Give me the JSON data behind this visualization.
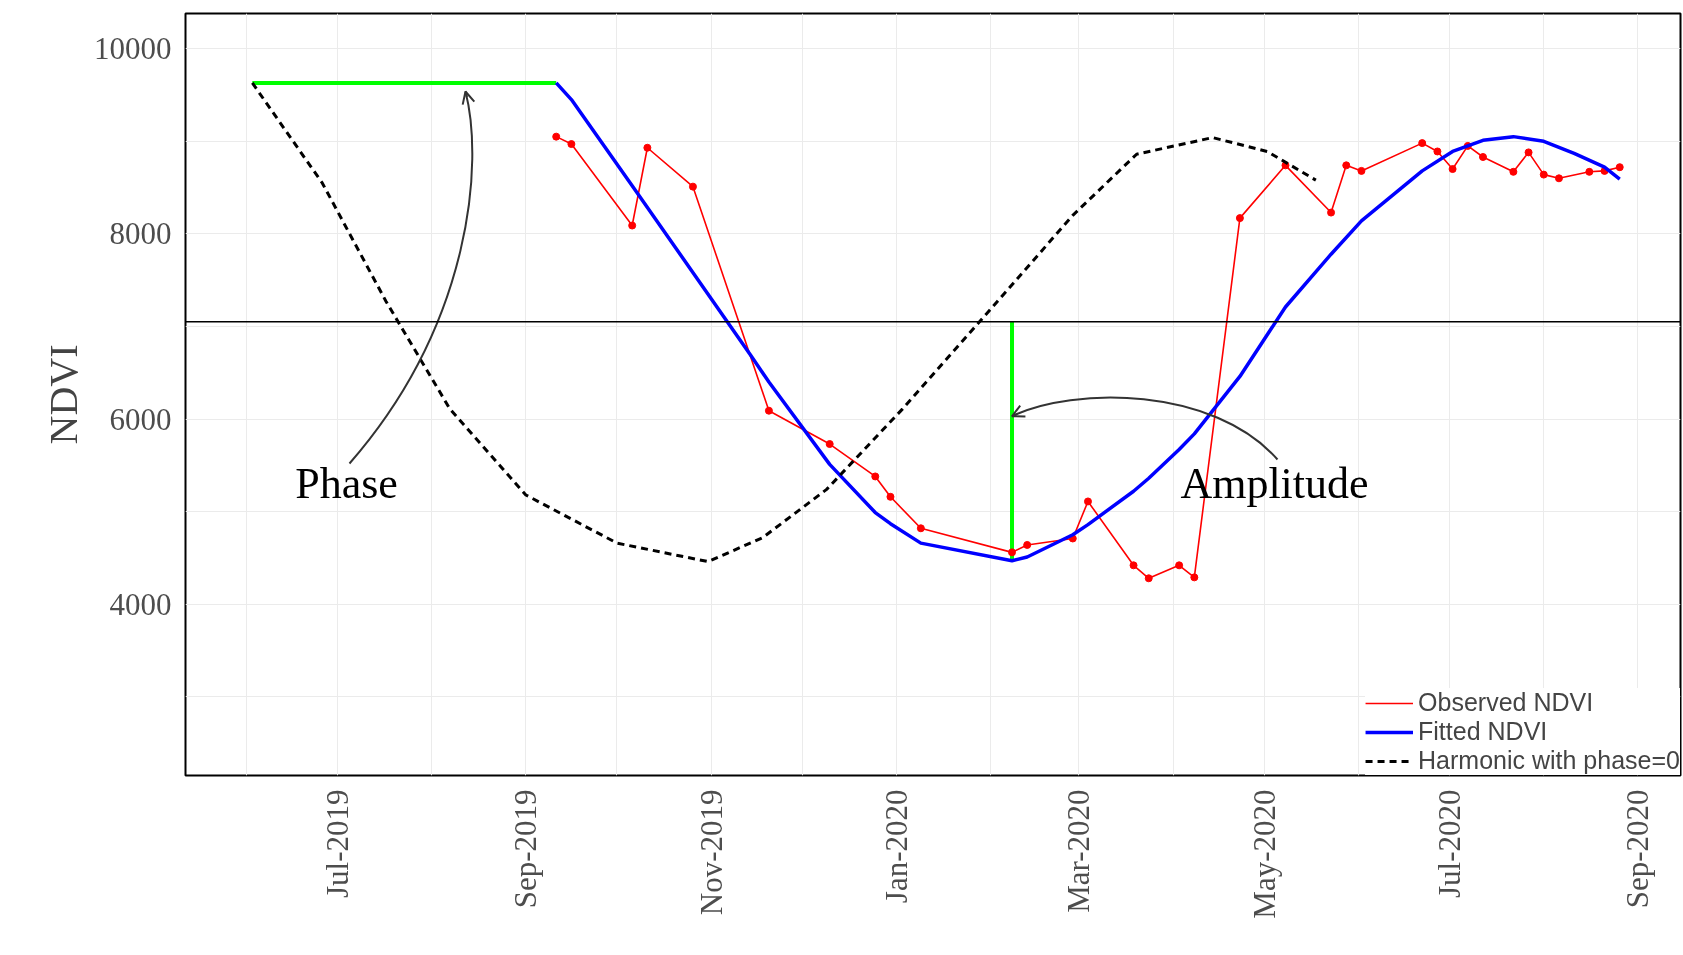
{
  "chart_data": {
    "type": "line",
    "ylabel": "NDVI",
    "xlim": [
      "2019-05-12",
      "2020-09-15"
    ],
    "ylim": [
      2150,
      10380
    ],
    "xticks": [
      {
        "value": "2019-06-01",
        "label": null
      },
      {
        "value": "2019-07-01",
        "label": "Jul-2019"
      },
      {
        "value": "2019-08-01",
        "label": null
      },
      {
        "value": "2019-09-01",
        "label": "Sep-2019"
      },
      {
        "value": "2019-10-01",
        "label": null
      },
      {
        "value": "2019-11-01",
        "label": "Nov-2019"
      },
      {
        "value": "2019-12-01",
        "label": null
      },
      {
        "value": "2020-01-01",
        "label": "Jan-2020"
      },
      {
        "value": "2020-02-01",
        "label": null
      },
      {
        "value": "2020-03-01",
        "label": "Mar-2020"
      },
      {
        "value": "2020-04-01",
        "label": null
      },
      {
        "value": "2020-05-01",
        "label": "May-2020"
      },
      {
        "value": "2020-06-01",
        "label": null
      },
      {
        "value": "2020-07-01",
        "label": "Jul-2020"
      },
      {
        "value": "2020-08-01",
        "label": null
      },
      {
        "value": "2020-09-01",
        "label": "Sep-2020"
      }
    ],
    "yticks": [
      {
        "value": 3000,
        "label": null
      },
      4000,
      {
        "value": 5000,
        "label": null
      },
      6000,
      {
        "value": 7000,
        "label": null
      },
      8000,
      {
        "value": 9000,
        "label": null
      },
      10000
    ],
    "grid": true,
    "legend": "bottom right",
    "marker": "none",
    "line_style": "solid",
    "series": [
      {
        "name": "Observed NDVI",
        "color": "#ff0000",
        "marker": "circle",
        "x": [
          "2019-09-11",
          "2019-09-16",
          "2019-10-06",
          "2019-10-11",
          "2019-10-26",
          "2019-11-20",
          "2019-12-10",
          "2019-12-25",
          "2019-12-30",
          "2020-01-09",
          "2020-02-08",
          "2020-02-13",
          "2020-02-28",
          "2020-03-04",
          "2020-03-19",
          "2020-03-24",
          "2020-04-03",
          "2020-04-08",
          "2020-04-23",
          "2020-05-08",
          "2020-05-23",
          "2020-05-28",
          "2020-06-02",
          "2020-06-22",
          "2020-06-27",
          "2020-07-02",
          "2020-07-07",
          "2020-07-12",
          "2020-07-22",
          "2020-07-27",
          "2020-08-01",
          "2020-08-06",
          "2020-08-16",
          "2020-08-21",
          "2020-08-26"
        ],
        "values": [
          9050,
          8970,
          8090,
          8930,
          8510,
          6090,
          5730,
          5380,
          5160,
          4820,
          4560,
          4640,
          4710,
          5110,
          4420,
          4280,
          4420,
          4290,
          8170,
          8740,
          8230,
          8740,
          8680,
          8980,
          8890,
          8700,
          8950,
          8830,
          8670,
          8880,
          8640,
          8600,
          8670,
          8680,
          8720
        ]
      },
      {
        "name": "Fitted NDVI",
        "color": "#0000ff",
        "x": [
          "2019-09-11",
          "2019-09-16",
          "2019-10-06",
          "2019-11-14",
          "2019-11-20",
          "2019-12-10",
          "2019-12-25",
          "2019-12-30",
          "2020-01-09",
          "2020-02-08",
          "2020-02-13",
          "2020-02-28",
          "2020-03-04",
          "2020-03-19",
          "2020-03-24",
          "2020-04-03",
          "2020-04-08",
          "2020-04-23",
          "2020-05-08",
          "2020-05-23",
          "2020-06-02",
          "2020-06-22",
          "2020-07-02",
          "2020-07-12",
          "2020-07-22",
          "2020-08-01",
          "2020-08-11",
          "2020-08-21",
          "2020-08-26"
        ],
        "values": [
          9630,
          9450,
          8520,
          6690,
          6400,
          5510,
          4990,
          4870,
          4660,
          4470,
          4510,
          4750,
          4860,
          5220,
          5360,
          5670,
          5840,
          6460,
          7210,
          7780,
          8140,
          8680,
          8890,
          9010,
          9050,
          9000,
          8870,
          8720,
          8590
        ]
      },
      {
        "name": "Harmonic with phase=0",
        "color": "#000000",
        "line_style": "dashed",
        "x": [
          "2019-06-03",
          "2019-06-26",
          "2019-07-17",
          "2019-08-07",
          "2019-09-01",
          "2019-10-01",
          "2019-10-31",
          "2019-11-18",
          "2019-12-09",
          "2020-01-03",
          "2020-01-31",
          "2020-02-28",
          "2020-03-20",
          "2020-04-14",
          "2020-05-02",
          "2020-05-18"
        ],
        "values": [
          9630,
          8550,
          7270,
          6110,
          5180,
          4660,
          4460,
          4720,
          5240,
          6110,
          7150,
          8200,
          8860,
          9040,
          8890,
          8580
        ]
      },
      {
        "color": "#00ff00",
        "x": [
          "2019-06-03",
          "2019-09-11"
        ],
        "values": [
          9630,
          9630
        ]
      },
      {
        "color": "#00ff00",
        "x": [
          "2020-02-08",
          "2020-02-08"
        ],
        "values": [
          7050,
          4470
        ]
      }
    ],
    "ref_lines": [
      {
        "axis": "y",
        "value": 7050,
        "color": "#000000"
      }
    ],
    "annotations": [
      "Phase",
      {
        "text": "Amplitude",
        "x": "2020-02-08",
        "y": 6030
      }
    ]
  }
}
